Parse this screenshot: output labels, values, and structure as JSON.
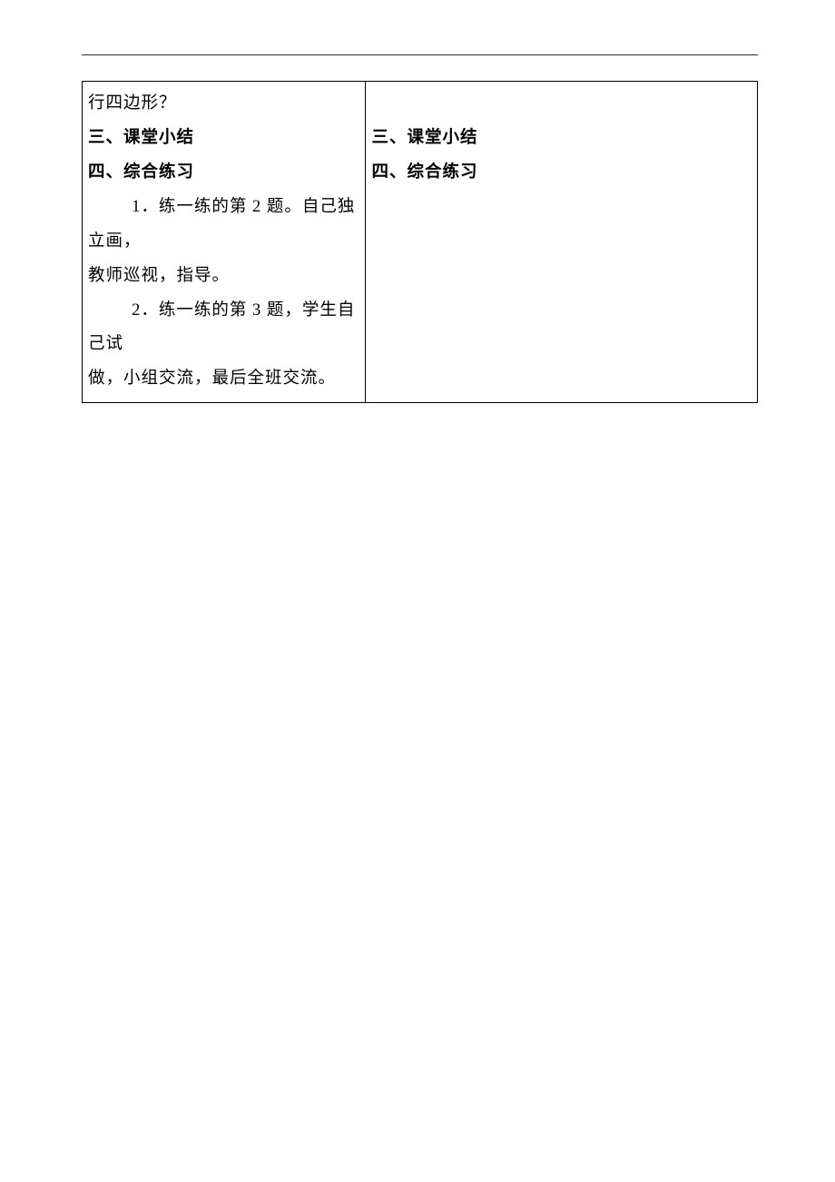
{
  "left_column": {
    "line1": "行四边形？",
    "heading1": "三、课堂小结",
    "heading2": "四、综合练习",
    "item1_part1": "1．练一练的第 2 题。自己独立画，",
    "item1_part2": "教师巡视，指导。",
    "item2_part1": "2．练一练的第 3 题，学生自己试",
    "item2_part2": "做，小组交流，最后全班交流。"
  },
  "right_column": {
    "heading1": "三、课堂小结",
    "heading2": "四、综合练习"
  }
}
